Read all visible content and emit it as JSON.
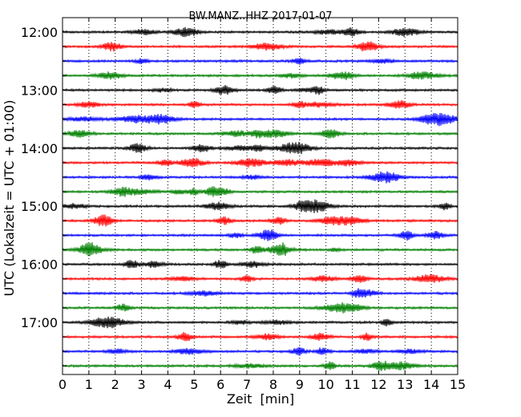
{
  "chart_data": {
    "type": "line",
    "title": "BW.MANZ..HHZ 2017-01-07",
    "xlabel": "Zeit  [min]",
    "ylabel": "UTC (Lokalzeit = UTC + 01:00)",
    "xlim": [
      0,
      15
    ],
    "x_ticks": [
      "0",
      "1",
      "2",
      "3",
      "4",
      "5",
      "6",
      "7",
      "8",
      "9",
      "10",
      "11",
      "12",
      "13",
      "14",
      "15"
    ],
    "y_tick_labels": [
      "12:00",
      "13:00",
      "14:00",
      "15:00",
      "16:00",
      "17:00"
    ],
    "grid": "vertical-dotted",
    "trace_start_times": [
      "12:00",
      "12:15",
      "12:30",
      "12:45",
      "13:00",
      "13:15",
      "13:30",
      "13:45",
      "14:00",
      "14:15",
      "14:30",
      "14:45",
      "15:00",
      "15:15",
      "15:30",
      "15:45",
      "16:00",
      "16:15",
      "16:30",
      "16:45",
      "17:00",
      "17:15",
      "17:30",
      "17:45"
    ],
    "trace_colors": [
      "#000000",
      "#ff0000",
      "#0000ff",
      "#008000"
    ]
  }
}
